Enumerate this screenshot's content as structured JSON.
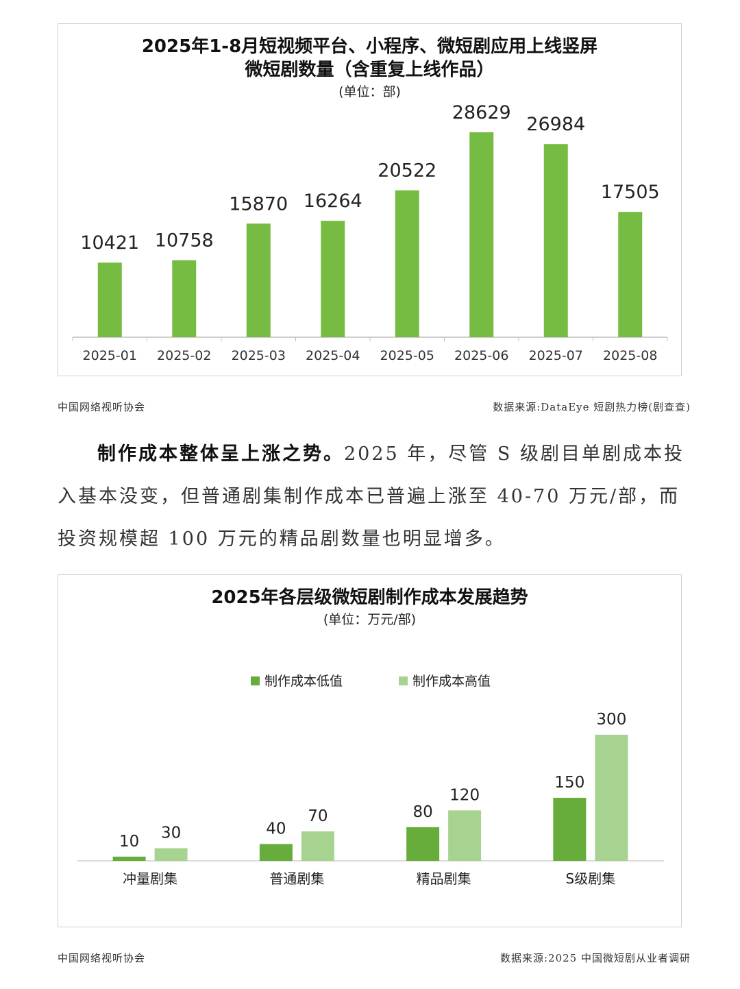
{
  "chart_data": [
    {
      "type": "bar",
      "title_line1": "2025年1-8月短视频平台、小程序、微短剧应用上线竖屏",
      "title_line2": "微短剧数量（含重复上线作品）",
      "unit": "(单位：部)",
      "categories": [
        "2025-01",
        "2025-02",
        "2025-03",
        "2025-04",
        "2025-05",
        "2025-06",
        "2025-07",
        "2025-08"
      ],
      "values": [
        10421,
        10758,
        15870,
        16264,
        20522,
        28629,
        26984,
        17505
      ],
      "color": "#76bc43",
      "grid": false
    },
    {
      "type": "bar",
      "title": "2025年各层级微短剧制作成本发展趋势",
      "unit": "(单位：万元/部)",
      "categories": [
        "冲量剧集",
        "普通剧集",
        "精品剧集",
        "S级剧集"
      ],
      "series": [
        {
          "name": "制作成本低值",
          "values": [
            10,
            40,
            80,
            150
          ],
          "color": "#67ad3b"
        },
        {
          "name": "制作成本高值",
          "values": [
            30,
            70,
            120,
            300
          ],
          "color": "#a6d38f"
        }
      ],
      "legend_position": "top",
      "grid": false
    }
  ],
  "sources": {
    "org_1": "中国网络视听协会",
    "source_1": "数据来源:DataEye 短剧热力榜(剧查查)",
    "org_2": "中国网络视听协会",
    "source_2": "数据来源:2025 中国微短剧从业者调研"
  },
  "body": {
    "lead": "制作成本整体呈上涨之势。",
    "text": "2025 年，尽管 S 级剧目单剧成本投入基本没变，但普通剧集制作成本已普遍上涨至 40-70 万元/部，而投资规模超 100 万元的精品剧数量也明显增多。"
  }
}
